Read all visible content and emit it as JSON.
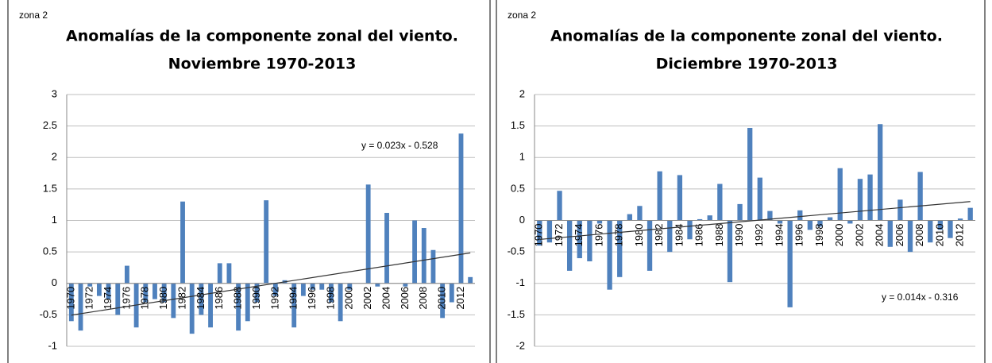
{
  "chart_data": [
    {
      "type": "bar",
      "subtitle": "zona 2",
      "title": [
        "Anomalías de la componente zonal del viento.",
        "Noviembre 1970-2013"
      ],
      "categories": [
        "1970",
        null,
        "1972",
        null,
        "1974",
        null,
        "1976",
        null,
        "1978",
        null,
        "1980",
        null,
        "1982",
        null,
        "1984",
        null,
        "1986",
        null,
        "1988",
        null,
        "1990",
        null,
        "1992",
        null,
        "1994",
        null,
        "1996",
        null,
        "1998",
        null,
        "2000",
        null,
        "2002",
        null,
        "2004",
        null,
        "2006",
        null,
        "2008",
        null,
        "2010",
        null,
        "2012",
        null
      ],
      "values": [
        -0.6,
        -0.75,
        -0.05,
        -0.2,
        -0.25,
        -0.5,
        0.28,
        -0.7,
        -0.3,
        -0.25,
        -0.3,
        -0.55,
        1.3,
        -0.8,
        -0.5,
        -0.7,
        0.32,
        0.32,
        -0.75,
        -0.6,
        -0.3,
        1.32,
        -0.2,
        0.05,
        -0.7,
        -0.2,
        -0.1,
        -0.1,
        -0.3,
        -0.6,
        -0.1,
        0,
        1.57,
        -0.05,
        1.12,
        0,
        -0.05,
        1.0,
        0.88,
        0.53,
        -0.55,
        -0.3,
        2.38,
        0.1
      ],
      "color": "#4f81bd",
      "ylim": [
        -1,
        3
      ],
      "yticks": [
        -1,
        -0.5,
        0,
        0.5,
        1,
        1.5,
        2,
        2.5,
        3
      ],
      "grid": true,
      "trendline": {
        "label": "y = 0.023x - 0.528",
        "slope": 0.023,
        "intercept": -0.528
      }
    },
    {
      "type": "bar",
      "subtitle": "zona 2",
      "title": [
        "Anomalías de la componente zonal del viento.",
        "Diciembre 1970-2013"
      ],
      "categories": [
        "1970",
        null,
        "1972",
        null,
        "1974",
        null,
        "1976",
        null,
        "1978",
        null,
        "1980",
        null,
        "1982",
        null,
        "1984",
        null,
        "1986",
        null,
        "1988",
        null,
        "1990",
        null,
        "1992",
        null,
        "1994",
        null,
        "1996",
        null,
        "1998",
        null,
        "2000",
        null,
        "2002",
        null,
        "2004",
        null,
        "2006",
        null,
        "2008",
        null,
        "2010",
        null,
        "2012",
        null
      ],
      "values": [
        -0.4,
        -0.35,
        0.47,
        -0.8,
        -0.6,
        -0.65,
        -0.05,
        -1.1,
        -0.9,
        0.1,
        0.23,
        -0.8,
        0.78,
        -0.5,
        0.72,
        -0.3,
        0.02,
        0.08,
        0.58,
        -0.98,
        0.26,
        1.47,
        0.68,
        0.15,
        -0.05,
        -1.38,
        0.16,
        -0.15,
        -0.1,
        0.05,
        0.83,
        -0.05,
        0.66,
        0.73,
        1.53,
        -0.42,
        0.33,
        -0.5,
        0.77,
        -0.35,
        -0.15,
        -0.28,
        0.03,
        0.2
      ],
      "color": "#4f81bd",
      "ylim": [
        -2,
        2
      ],
      "yticks": [
        -2,
        -1.5,
        -1,
        -0.5,
        0,
        0.5,
        1,
        1.5,
        2
      ],
      "grid": true,
      "trendline": {
        "label": "y = 0.014x - 0.316",
        "slope": 0.014,
        "intercept": -0.316
      }
    }
  ]
}
